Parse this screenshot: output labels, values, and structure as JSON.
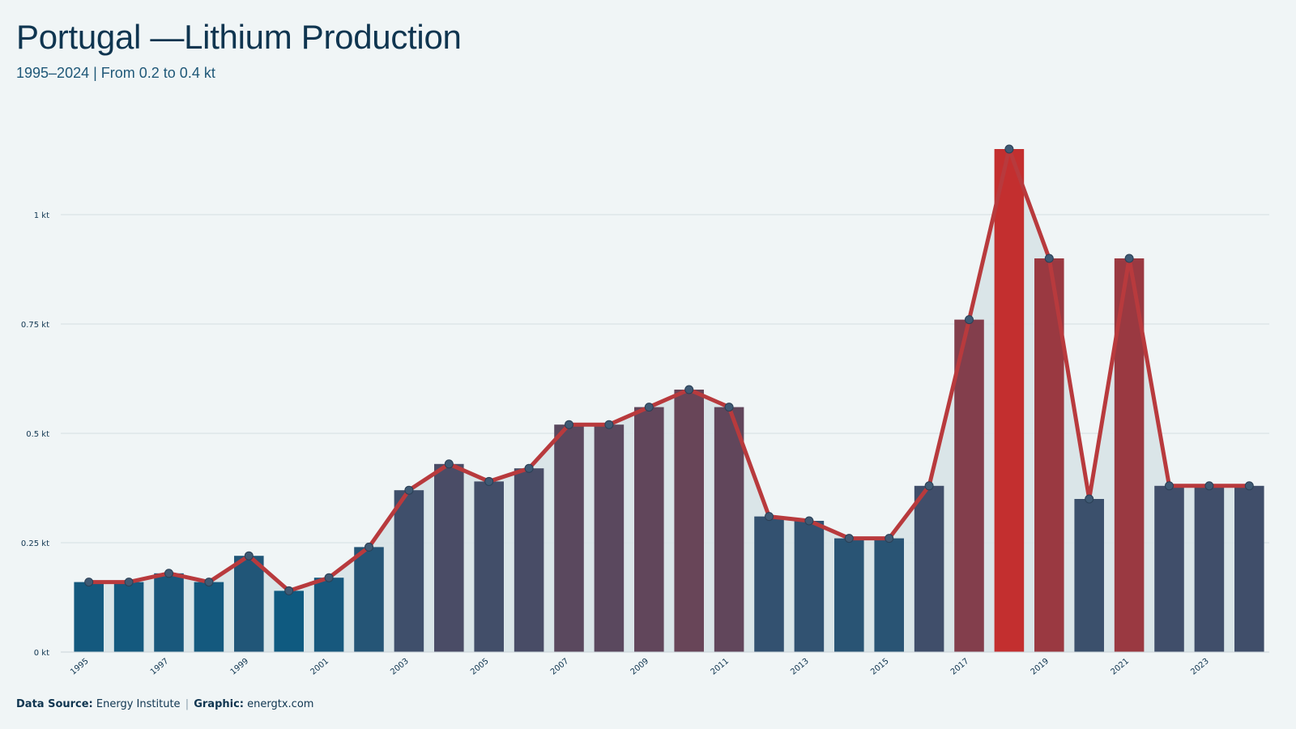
{
  "header": {
    "title": "Portugal —Lithium Production",
    "subtitle": "1995–2024 | From 0.2 to 0.4 kt"
  },
  "footer": {
    "source_label": "Data Source:",
    "source_value": "Energy Institute",
    "separator": "|",
    "graphic_label": "Graphic:",
    "graphic_value": "energtx.com"
  },
  "colors": {
    "background": "#f0f5f6",
    "line": "#b83a3d",
    "area": "#d7e3e7",
    "bar_low": "#0f5a80",
    "bar_high": "#c32f2f",
    "marker": "#3f5a74",
    "grid": "#d5dee2"
  },
  "chart_data": {
    "type": "bar",
    "overlay": "line with markers and shaded area",
    "unit": "kt",
    "x": [
      1995,
      1996,
      1997,
      1998,
      1999,
      2000,
      2001,
      2002,
      2003,
      2004,
      2005,
      2006,
      2007,
      2008,
      2009,
      2010,
      2011,
      2012,
      2013,
      2014,
      2015,
      2016,
      2017,
      2018,
      2019,
      2020,
      2021,
      2022,
      2023,
      2024
    ],
    "values": [
      0.16,
      0.16,
      0.18,
      0.16,
      0.22,
      0.14,
      0.17,
      0.24,
      0.37,
      0.43,
      0.39,
      0.42,
      0.52,
      0.52,
      0.56,
      0.6,
      0.56,
      0.31,
      0.3,
      0.26,
      0.26,
      0.38,
      0.76,
      1.15,
      0.9,
      0.35,
      0.9,
      0.38,
      0.38,
      0.38
    ],
    "x_tick_labels": [
      "1995",
      "1997",
      "1999",
      "2001",
      "2003",
      "2005",
      "2007",
      "2009",
      "2011",
      "2013",
      "2015",
      "2017",
      "2019",
      "2021",
      "2023"
    ],
    "y_ticks": [
      0,
      0.25,
      0.5,
      0.75,
      1
    ],
    "y_tick_labels": [
      "0 kt",
      "0.25 kt",
      "0.5 kt",
      "0.75 kt",
      "1 kt"
    ],
    "ylim": [
      0,
      1.25
    ],
    "grid": "horizontal",
    "title": "Portugal —Lithium Production",
    "subtitle": "1995–2024 | From 0.2 to 0.4 kt",
    "xlabel": "",
    "ylabel": ""
  }
}
